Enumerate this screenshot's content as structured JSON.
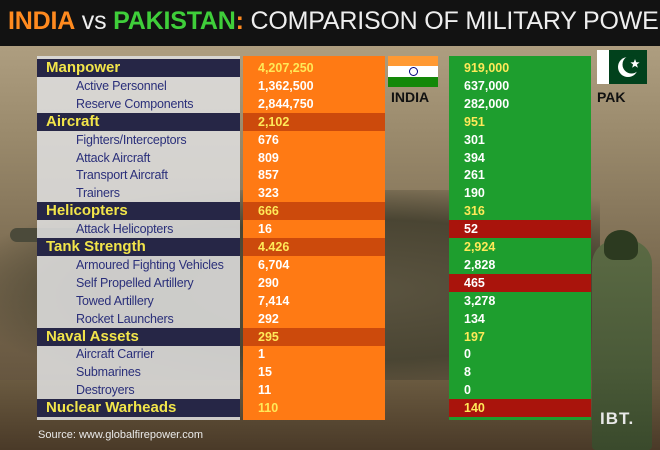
{
  "title": {
    "india": "INDIA",
    "vs": " vs ",
    "pakistan": "PAKISTAN",
    "colon": ":",
    "rest": " COMPARISON OF MILITARY POWER"
  },
  "countries": {
    "india": "INDIA",
    "pakistan": "PAK"
  },
  "source": "Source: www.globalfirepower.com",
  "brand": "IBT.",
  "colors": {
    "india": "#ff7a14",
    "pakistan": "#1e9e2e",
    "india_highlight": "#cc4a0c",
    "pakistan_highlight": "#a9140c",
    "category_label": "#f2e54a"
  },
  "chart_data": {
    "type": "table",
    "title": "INDIA vs PAKISTAN: COMPARISON OF MILITARY POWER",
    "columns": [
      "INDIA",
      "PAK"
    ],
    "rows": [
      {
        "label": "Manpower",
        "category": true,
        "india": "4,207,250",
        "pak": "919,000"
      },
      {
        "label": "Active Personnel",
        "category": false,
        "india": "1,362,500",
        "pak": "637,000"
      },
      {
        "label": "Reserve Components",
        "category": false,
        "india": "2,844,750",
        "pak": "282,000"
      },
      {
        "label": "Aircraft",
        "category": true,
        "india": "2,102",
        "pak": "951",
        "highlight": "india"
      },
      {
        "label": "Fighters/Interceptors",
        "category": false,
        "india": "676",
        "pak": "301"
      },
      {
        "label": "Attack Aircraft",
        "category": false,
        "india": "809",
        "pak": "394"
      },
      {
        "label": "Transport Aircraft",
        "category": false,
        "india": "857",
        "pak": "261"
      },
      {
        "label": "Trainers",
        "category": false,
        "india": "323",
        "pak": "190"
      },
      {
        "label": "Helicopters",
        "category": true,
        "india": "666",
        "pak": "316",
        "highlight": "india"
      },
      {
        "label": "Attack Helicopters",
        "category": false,
        "india": "16",
        "pak": "52",
        "highlight": "pak"
      },
      {
        "label": "Tank Strength",
        "category": true,
        "india": "4.426",
        "pak": "2,924",
        "highlight": "india"
      },
      {
        "label": "Armoured Fighting Vehicles",
        "category": false,
        "india": "6,704",
        "pak": "2,828"
      },
      {
        "label": "Self Propelled Artillery",
        "category": false,
        "india": "290",
        "pak": "465",
        "highlight": "pak"
      },
      {
        "label": "Towed Artillery",
        "category": false,
        "india": "7,414",
        "pak": "3,278"
      },
      {
        "label": "Rocket Launchers",
        "category": false,
        "india": "292",
        "pak": "134"
      },
      {
        "label": "Naval Assets",
        "category": true,
        "india": "295",
        "pak": "197",
        "highlight": "india"
      },
      {
        "label": "Aircraft Carrier",
        "category": false,
        "india": "1",
        "pak": "0"
      },
      {
        "label": "Submarines",
        "category": false,
        "india": "15",
        "pak": "8"
      },
      {
        "label": "Destroyers",
        "category": false,
        "india": "11",
        "pak": "0"
      },
      {
        "label": "Nuclear Warheads",
        "category": true,
        "india": "110",
        "pak": "140",
        "highlight": "pak"
      }
    ]
  }
}
